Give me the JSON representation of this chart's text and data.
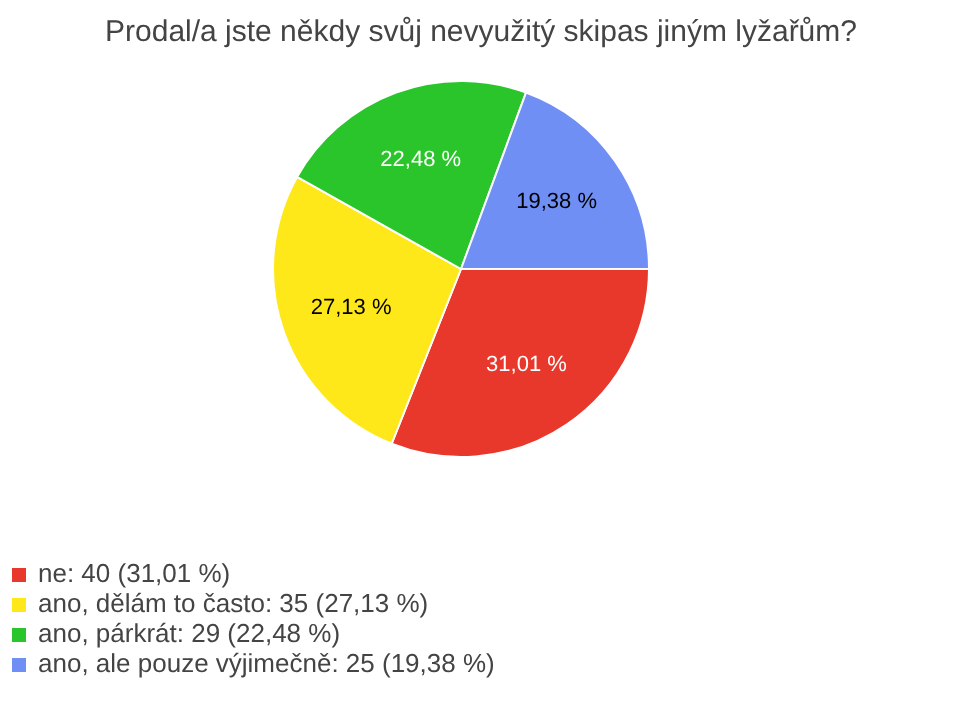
{
  "chart_data": {
    "type": "pie",
    "title": "Prodal/a jste někdy svůj nevyužitý skipas jiným lyžařům?",
    "categories": [
      "ne: 40 (31,01 %)",
      "ano, dělám to často: 35 (27,13 %)",
      "ano, párkrát: 29 (22,48 %)",
      "ano, ale pouze výjimečně: 25 (19,38 %)"
    ],
    "values": [
      31.01,
      27.13,
      22.48,
      19.38
    ],
    "value_labels": [
      "31,01 %",
      "27,13 %",
      "22,48 %",
      "19,38 %"
    ],
    "colors": [
      "#e8372b",
      "#ffe81a",
      "#2ac52a",
      "#6f8ff5"
    ],
    "legend": "bottom left"
  }
}
